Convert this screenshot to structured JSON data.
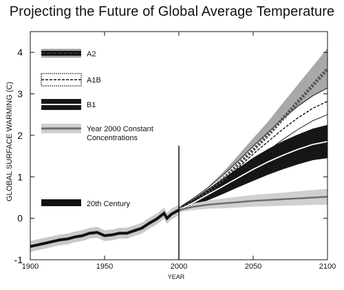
{
  "chart_data": {
    "type": "line",
    "title": "Projecting the Future of Global Average Temperature",
    "xlabel": "YEAR",
    "ylabel": "GLOBAL SURFACE WARMING (C)",
    "xlim": [
      1900,
      2100
    ],
    "ylim": [
      -1,
      4.5
    ],
    "x_ticks": [
      1900,
      1950,
      2000,
      2050,
      2100
    ],
    "y_ticks": [
      -1,
      0,
      1,
      2,
      3,
      4
    ],
    "grid": false,
    "legend_position": "top-left",
    "colors": {
      "a2": "#555555",
      "a2_band": "#a8a8a8",
      "a1b": "#111111",
      "a1b_band": "#ffffff",
      "b1": "#ffffff",
      "b1_band": "#161616",
      "commitment": "#6e6e6e",
      "commitment_band": "#d0d0d0",
      "twentieth": "#111111",
      "twentieth_band": "#c8c8c8",
      "divider": "#111111"
    },
    "series": [
      {
        "name": "20th Century",
        "x": [
          1900,
          1905,
          1910,
          1915,
          1920,
          1925,
          1930,
          1935,
          1940,
          1945,
          1950,
          1955,
          1960,
          1965,
          1970,
          1975,
          1980,
          1985,
          1990,
          1992,
          1995,
          2000
        ],
        "values": [
          -0.68,
          -0.64,
          -0.6,
          -0.56,
          -0.52,
          -0.5,
          -0.45,
          -0.42,
          -0.36,
          -0.34,
          -0.42,
          -0.4,
          -0.36,
          -0.36,
          -0.3,
          -0.24,
          -0.12,
          -0.02,
          0.12,
          0.0,
          0.1,
          0.2
        ],
        "band": 0.13
      },
      {
        "name": "A2",
        "x": [
          2000,
          2010,
          2020,
          2030,
          2040,
          2050,
          2060,
          2070,
          2080,
          2090,
          2100
        ],
        "values": [
          0.2,
          0.4,
          0.65,
          0.95,
          1.3,
          1.65,
          2.0,
          2.4,
          2.8,
          3.2,
          3.6
        ],
        "band": [
          0.05,
          0.08,
          0.12,
          0.17,
          0.22,
          0.28,
          0.33,
          0.38,
          0.42,
          0.46,
          0.5
        ]
      },
      {
        "name": "A1B",
        "x": [
          2000,
          2010,
          2020,
          2030,
          2040,
          2050,
          2060,
          2070,
          2080,
          2090,
          2100
        ],
        "values": [
          0.2,
          0.42,
          0.65,
          0.92,
          1.22,
          1.55,
          1.85,
          2.15,
          2.42,
          2.65,
          2.82
        ],
        "band": [
          0.05,
          0.07,
          0.1,
          0.13,
          0.16,
          0.19,
          0.22,
          0.25,
          0.28,
          0.3,
          0.32
        ]
      },
      {
        "name": "B1",
        "x": [
          2000,
          2010,
          2020,
          2030,
          2040,
          2050,
          2060,
          2070,
          2080,
          2090,
          2100
        ],
        "values": [
          0.2,
          0.38,
          0.58,
          0.78,
          0.98,
          1.18,
          1.36,
          1.52,
          1.66,
          1.78,
          1.85
        ],
        "band": [
          0.05,
          0.09,
          0.14,
          0.19,
          0.23,
          0.28,
          0.31,
          0.34,
          0.36,
          0.38,
          0.4
        ]
      },
      {
        "name": "Year 2000 Constant Concentrations",
        "x": [
          2000,
          2010,
          2020,
          2030,
          2040,
          2050,
          2060,
          2070,
          2080,
          2090,
          2100
        ],
        "values": [
          0.2,
          0.28,
          0.33,
          0.36,
          0.39,
          0.42,
          0.44,
          0.46,
          0.48,
          0.5,
          0.52
        ],
        "band": [
          0.05,
          0.08,
          0.1,
          0.12,
          0.13,
          0.14,
          0.15,
          0.16,
          0.17,
          0.18,
          0.19
        ]
      }
    ],
    "divider_year": 2000,
    "legend": [
      {
        "label": "A2"
      },
      {
        "label": "A1B"
      },
      {
        "label": "B1"
      },
      {
        "label": "Year 2000 Constant\nConcentrations"
      },
      {
        "label": "20th Century"
      }
    ]
  }
}
